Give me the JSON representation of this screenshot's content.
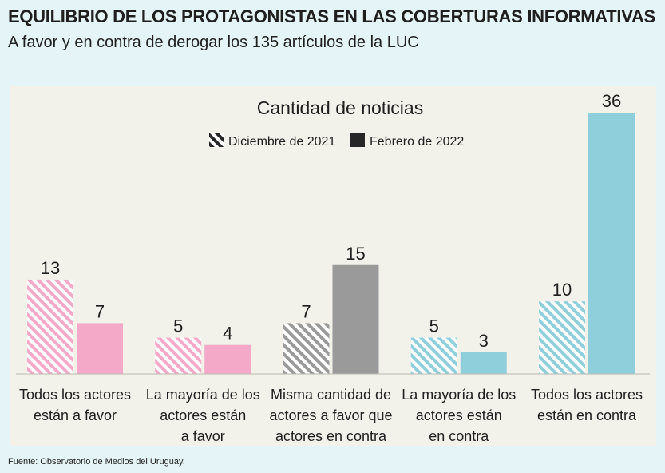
{
  "header": {
    "title": "EQUILIBRIO DE LOS PROTAGONISTAS EN LAS COBERTURAS INFORMATIVAS",
    "subtitle": "A favor y en contra de derogar los 135 artículos de la LUC"
  },
  "footer": {
    "source": "Fuente: Observatorio de Medios del Uruguay."
  },
  "colors": {
    "panel": "#f2f1ea",
    "pink": "#f4a9c8",
    "gray": "#9a9a9a",
    "blue": "#8fcfdc",
    "legend_dark": "#262626",
    "text": "#1f1f1f"
  },
  "chart_data": {
    "type": "bar",
    "title": "Cantidad de noticias",
    "legend_position": "top-center",
    "ylim": [
      0,
      36
    ],
    "series": [
      {
        "name": "Diciembre de 2021",
        "pattern": "striped",
        "values": [
          13,
          5,
          7,
          5,
          10
        ]
      },
      {
        "name": "Febrero de 2022",
        "pattern": "solid",
        "values": [
          7,
          4,
          15,
          3,
          36
        ]
      }
    ],
    "categories": [
      {
        "lines": [
          "Todos los actores",
          "están a favor"
        ],
        "color_key": "pink"
      },
      {
        "lines": [
          "La mayoría de los",
          "actores están",
          "a favor"
        ],
        "color_key": "pink"
      },
      {
        "lines": [
          "Misma cantidad de",
          "actores a favor que",
          "actores en contra"
        ],
        "color_key": "gray"
      },
      {
        "lines": [
          "La mayoría de los",
          "actores están",
          "en contra"
        ],
        "color_key": "blue"
      },
      {
        "lines": [
          "Todos los actores",
          "están en contra"
        ],
        "color_key": "blue"
      }
    ]
  }
}
